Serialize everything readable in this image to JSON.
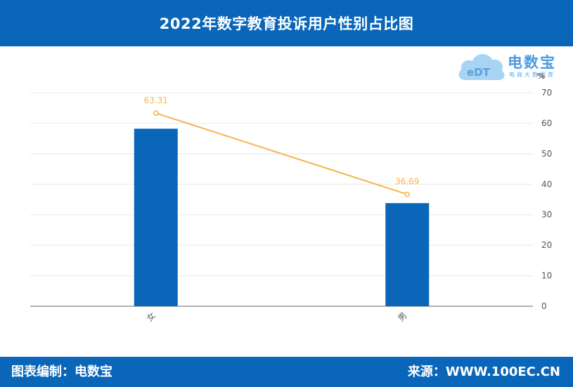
{
  "header": {
    "title": "2022年数字教育投诉用户性别占比图"
  },
  "footer": {
    "left_text": "图表编制：电数宝",
    "right_text": "来源：WWW.100EC.CN"
  },
  "logo": {
    "cloud_text": "eDT",
    "name": "电数宝",
    "subtitle": "电商大数据库"
  },
  "chart_data": {
    "type": "bar",
    "categories": [
      "女",
      "男"
    ],
    "series": [
      {
        "type": "bar",
        "values": [
          58.2,
          33.8
        ],
        "color": "#0a66b8"
      },
      {
        "type": "line",
        "values": [
          63.31,
          36.69
        ],
        "color": "#f6b44a",
        "value_labels": [
          "63.31",
          "36.69"
        ]
      }
    ],
    "y_unit": "%",
    "ylim": [
      0,
      70
    ],
    "y_ticks": [
      "0",
      "10",
      "20",
      "30",
      "40",
      "50",
      "60",
      "70"
    ],
    "y_axis_side": "right",
    "grid": true,
    "legend": "none"
  },
  "colors": {
    "header_bg": "#0a66b8",
    "bar": "#0a66b8",
    "line": "#f6b44a",
    "grid": "#e8e8e8",
    "axis": "#999999"
  }
}
